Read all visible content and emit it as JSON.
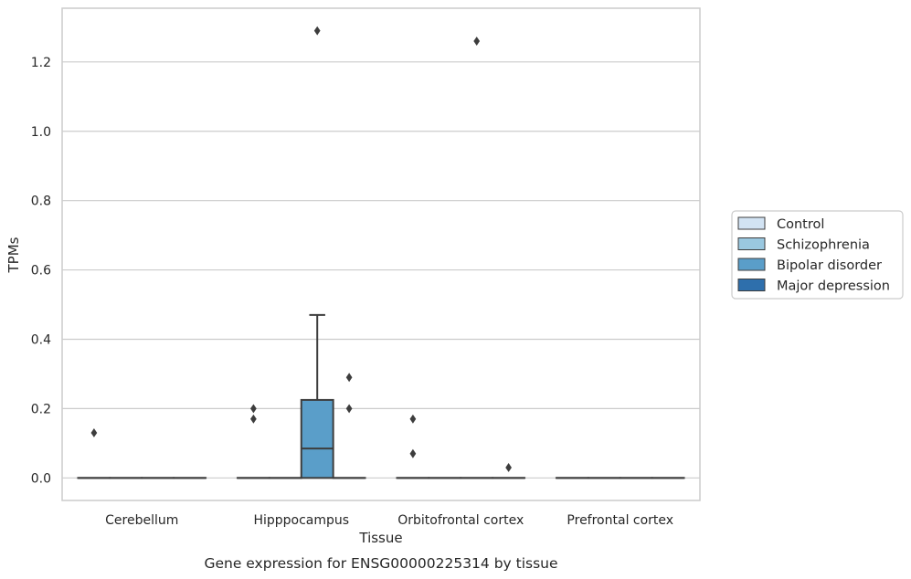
{
  "chart_data": {
    "type": "box",
    "title": "",
    "caption": "Gene expression for ENSG00000225314 by tissue",
    "xlabel": "Tissue",
    "ylabel": "TPMs",
    "ylim": [
      -0.065,
      1.355
    ],
    "yticks": [
      0.0,
      0.2,
      0.4,
      0.6,
      0.8,
      1.0,
      1.2
    ],
    "ytick_labels": [
      "0.0",
      "0.2",
      "0.4",
      "0.6",
      "0.8",
      "1.0",
      "1.2"
    ],
    "grid": true,
    "legend_position": "right",
    "categories": [
      "Cerebellum",
      "Hipppocampus",
      "Orbitofrontal cortex",
      "Prefrontal cortex"
    ],
    "series": [
      {
        "name": "Control",
        "color": "#d2e3f3",
        "boxes": [
          {
            "category": "Cerebellum",
            "q1": 0,
            "median": 0,
            "q3": 0,
            "whisker_low": 0,
            "whisker_high": 0,
            "outliers": [
              0.13
            ]
          },
          {
            "category": "Hipppocampus",
            "q1": 0,
            "median": 0,
            "q3": 0,
            "whisker_low": 0,
            "whisker_high": 0,
            "outliers": [
              0.17,
              0.2
            ]
          },
          {
            "category": "Orbitofrontal cortex",
            "q1": 0,
            "median": 0,
            "q3": 0,
            "whisker_low": 0,
            "whisker_high": 0,
            "outliers": [
              0.07,
              0.17
            ]
          },
          {
            "category": "Prefrontal cortex",
            "q1": 0,
            "median": 0,
            "q3": 0,
            "whisker_low": 0,
            "whisker_high": 0,
            "outliers": []
          }
        ]
      },
      {
        "name": "Schizophrenia",
        "color": "#9ac8e0",
        "boxes": [
          {
            "category": "Cerebellum",
            "q1": 0,
            "median": 0,
            "q3": 0,
            "whisker_low": 0,
            "whisker_high": 0,
            "outliers": []
          },
          {
            "category": "Hipppocampus",
            "q1": 0,
            "median": 0,
            "q3": 0,
            "whisker_low": 0,
            "whisker_high": 0,
            "outliers": []
          },
          {
            "category": "Orbitofrontal cortex",
            "q1": 0,
            "median": 0,
            "q3": 0,
            "whisker_low": 0,
            "whisker_high": 0,
            "outliers": []
          },
          {
            "category": "Prefrontal cortex",
            "q1": 0,
            "median": 0,
            "q3": 0,
            "whisker_low": 0,
            "whisker_high": 0,
            "outliers": []
          }
        ]
      },
      {
        "name": "Bipolar disorder",
        "color": "#5a9ec9",
        "boxes": [
          {
            "category": "Cerebellum",
            "q1": 0,
            "median": 0,
            "q3": 0,
            "whisker_low": 0,
            "whisker_high": 0,
            "outliers": []
          },
          {
            "category": "Hipppocampus",
            "q1": 0,
            "median": 0.085,
            "q3": 0.225,
            "whisker_low": 0,
            "whisker_high": 0.47,
            "outliers": [
              1.29
            ]
          },
          {
            "category": "Orbitofrontal cortex",
            "q1": 0,
            "median": 0,
            "q3": 0,
            "whisker_low": 0,
            "whisker_high": 0,
            "outliers": [
              1.26
            ]
          },
          {
            "category": "Prefrontal cortex",
            "q1": 0,
            "median": 0,
            "q3": 0,
            "whisker_low": 0,
            "whisker_high": 0,
            "outliers": []
          }
        ]
      },
      {
        "name": "Major depression",
        "color": "#2e6fac",
        "boxes": [
          {
            "category": "Cerebellum",
            "q1": 0,
            "median": 0,
            "q3": 0,
            "whisker_low": 0,
            "whisker_high": 0,
            "outliers": []
          },
          {
            "category": "Hipppocampus",
            "q1": 0,
            "median": 0,
            "q3": 0,
            "whisker_low": 0,
            "whisker_high": 0,
            "outliers": [
              0.2,
              0.29
            ]
          },
          {
            "category": "Orbitofrontal cortex",
            "q1": 0,
            "median": 0,
            "q3": 0,
            "whisker_low": 0,
            "whisker_high": 0,
            "outliers": [
              0.03
            ]
          },
          {
            "category": "Prefrontal cortex",
            "q1": 0,
            "median": 0,
            "q3": 0,
            "whisker_low": 0,
            "whisker_high": 0,
            "outliers": []
          }
        ]
      }
    ],
    "colors": {
      "grid": "#cccccc",
      "spine": "#cccccc",
      "box_edge": "#3d3d3d",
      "text": "#262626"
    }
  }
}
